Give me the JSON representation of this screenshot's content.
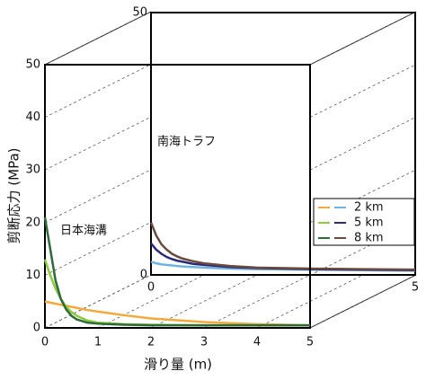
{
  "chart_data": [
    {
      "type": "line",
      "annotation": "日本海溝",
      "xlabel": "滑り量 (m)",
      "ylabel": "剪断応力 (MPa)",
      "x": [
        0,
        0.1,
        0.2,
        0.3,
        0.4,
        0.5,
        0.6,
        0.8,
        1,
        1.5,
        2,
        3,
        4,
        5
      ],
      "series": [
        {
          "color": "#f5a93a",
          "values": [
            5,
            4.8,
            4.6,
            4.4,
            4.2,
            4,
            3.8,
            3.4,
            3.1,
            2.4,
            1.8,
            1.1,
            0.7,
            0.5
          ]
        },
        {
          "color": "#8ccc3c",
          "values": [
            13,
            10,
            7.5,
            5.5,
            4,
            3,
            2.3,
            1.4,
            1,
            0.7,
            0.6,
            0.5,
            0.5,
            0.5
          ]
        },
        {
          "color": "#2e6b3a",
          "values": [
            21,
            15,
            9,
            5.5,
            3.5,
            2.3,
            1.6,
            1,
            0.8,
            0.6,
            0.5,
            0.5,
            0.5,
            0.5
          ]
        }
      ],
      "xlim": [
        0,
        5
      ],
      "xticks": [
        0,
        1,
        2,
        3,
        4,
        5
      ],
      "ylim": [
        0,
        50
      ],
      "yticks": [
        0,
        10,
        20,
        30,
        40,
        50
      ],
      "grid": true
    },
    {
      "type": "line",
      "annotation": "南海トラフ",
      "x": [
        0,
        0.1,
        0.2,
        0.3,
        0.4,
        0.5,
        0.6,
        0.8,
        1,
        1.5,
        2,
        3,
        4,
        5
      ],
      "series": [
        {
          "name": "2 km",
          "color": "#6cb4e4",
          "values": [
            2.5,
            2.2,
            2,
            1.9,
            1.8,
            1.7,
            1.6,
            1.5,
            1.4,
            1.2,
            1.1,
            1,
            0.9,
            0.8
          ]
        },
        {
          "name": "5 km",
          "color": "#2a2a7a",
          "values": [
            6,
            4.8,
            4,
            3.4,
            3,
            2.7,
            2.5,
            2.1,
            1.9,
            1.5,
            1.3,
            1.1,
            1,
            0.9
          ]
        },
        {
          "name": "8 km",
          "color": "#6b4a3a",
          "values": [
            10,
            7.5,
            5.8,
            4.8,
            4,
            3.5,
            3.1,
            2.6,
            2.2,
            1.7,
            1.4,
            1.2,
            1.1,
            1
          ]
        }
      ],
      "xlim": [
        0,
        5
      ],
      "xticks": [
        0,
        5
      ],
      "ylim": [
        0,
        50
      ],
      "yticks": [
        0,
        50
      ]
    }
  ]
}
